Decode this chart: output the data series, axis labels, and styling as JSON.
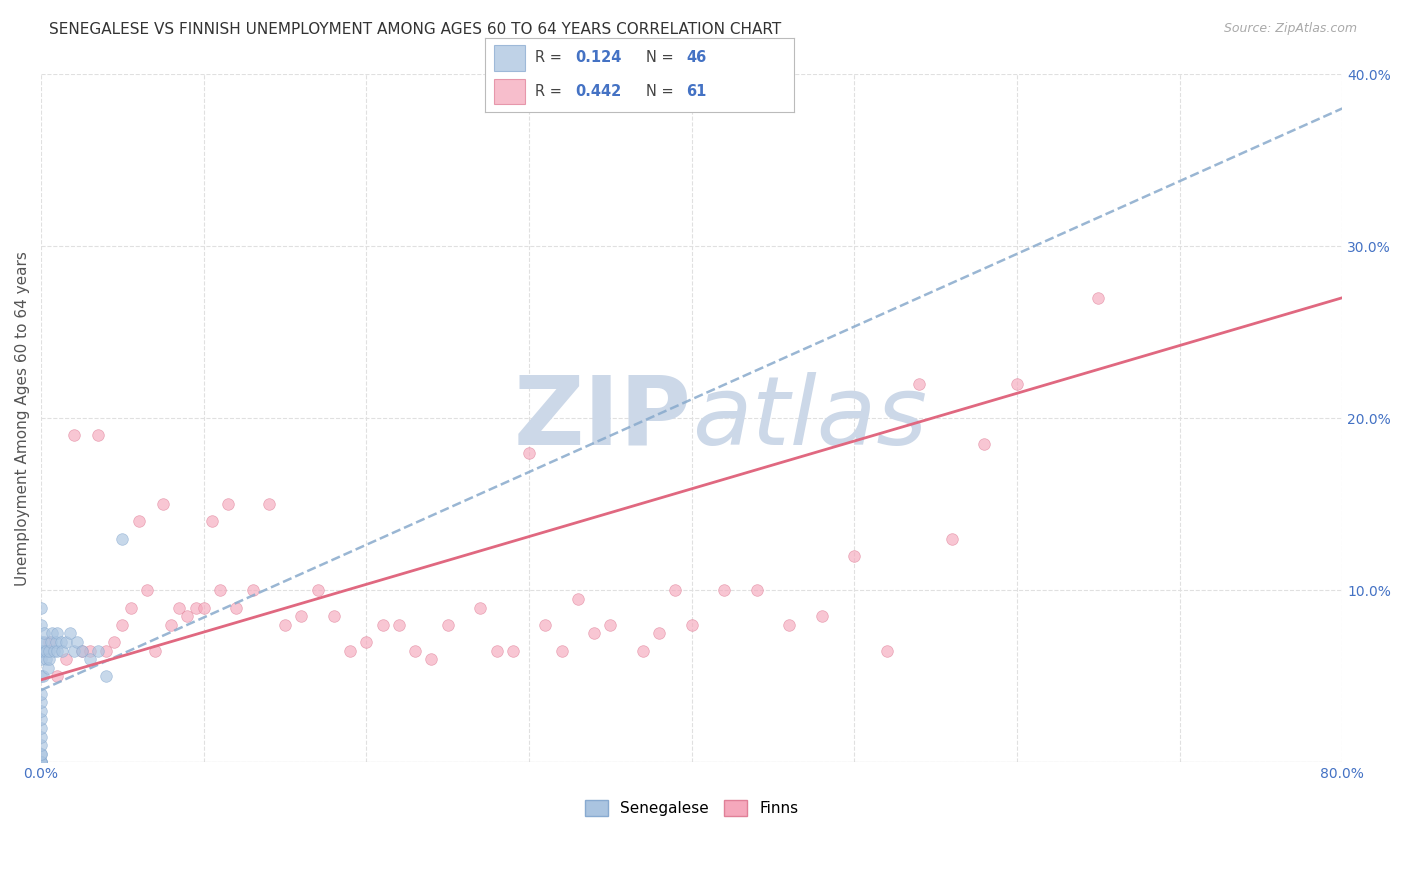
{
  "title": "SENEGALESE VS FINNISH UNEMPLOYMENT AMONG AGES 60 TO 64 YEARS CORRELATION CHART",
  "source": "Source: ZipAtlas.com",
  "ylabel": "Unemployment Among Ages 60 to 64 years",
  "xlim": [
    0.0,
    0.8
  ],
  "ylim": [
    0.0,
    0.4
  ],
  "xticks": [
    0.0,
    0.1,
    0.2,
    0.3,
    0.4,
    0.5,
    0.6,
    0.7,
    0.8
  ],
  "yticks": [
    0.0,
    0.1,
    0.2,
    0.3,
    0.4
  ],
  "xtick_labels": [
    "0.0%",
    "",
    "",
    "",
    "",
    "",
    "",
    "",
    "80.0%"
  ],
  "ytick_labels_right": [
    "",
    "10.0%",
    "20.0%",
    "30.0%",
    "40.0%"
  ],
  "background_color": "#ffffff",
  "grid_color": "#e0e0e0",
  "watermark_color": "#ccd8e8",
  "senegalese_color": "#aac4e0",
  "finns_color": "#f5a8bc",
  "senegalese_edge_color": "#88aad0",
  "finns_edge_color": "#e08098",
  "legend_R_senegalese": "0.124",
  "legend_N_senegalese": "46",
  "legend_R_finns": "0.442",
  "legend_N_finns": "61",
  "trendline_senegalese_color": "#88aacc",
  "trendline_finns_color": "#e06880",
  "senegalese_x": [
    0.0,
    0.0,
    0.0,
    0.0,
    0.0,
    0.0,
    0.0,
    0.0,
    0.0,
    0.0,
    0.0,
    0.0,
    0.0,
    0.0,
    0.0,
    0.0,
    0.0,
    0.0,
    0.0,
    0.0,
    0.001,
    0.001,
    0.002,
    0.002,
    0.003,
    0.003,
    0.004,
    0.005,
    0.005,
    0.006,
    0.007,
    0.008,
    0.009,
    0.01,
    0.01,
    0.012,
    0.013,
    0.015,
    0.018,
    0.02,
    0.022,
    0.025,
    0.03,
    0.035,
    0.04,
    0.05
  ],
  "senegalese_y": [
    0.0,
    0.0,
    0.0,
    0.0,
    0.0,
    0.005,
    0.005,
    0.01,
    0.015,
    0.02,
    0.025,
    0.03,
    0.035,
    0.04,
    0.05,
    0.06,
    0.065,
    0.07,
    0.08,
    0.09,
    0.05,
    0.065,
    0.07,
    0.075,
    0.06,
    0.065,
    0.055,
    0.06,
    0.065,
    0.07,
    0.075,
    0.065,
    0.07,
    0.065,
    0.075,
    0.07,
    0.065,
    0.07,
    0.075,
    0.065,
    0.07,
    0.065,
    0.06,
    0.065,
    0.05,
    0.13
  ],
  "finns_x": [
    0.005,
    0.01,
    0.015,
    0.02,
    0.025,
    0.03,
    0.035,
    0.04,
    0.045,
    0.05,
    0.055,
    0.06,
    0.065,
    0.07,
    0.075,
    0.08,
    0.085,
    0.09,
    0.095,
    0.1,
    0.105,
    0.11,
    0.115,
    0.12,
    0.13,
    0.14,
    0.15,
    0.16,
    0.17,
    0.18,
    0.19,
    0.2,
    0.21,
    0.22,
    0.23,
    0.24,
    0.25,
    0.27,
    0.28,
    0.29,
    0.3,
    0.31,
    0.32,
    0.33,
    0.34,
    0.35,
    0.37,
    0.38,
    0.39,
    0.4,
    0.42,
    0.44,
    0.46,
    0.48,
    0.5,
    0.52,
    0.54,
    0.56,
    0.58,
    0.6,
    0.65
  ],
  "finns_y": [
    0.07,
    0.05,
    0.06,
    0.19,
    0.065,
    0.065,
    0.19,
    0.065,
    0.07,
    0.08,
    0.09,
    0.14,
    0.1,
    0.065,
    0.15,
    0.08,
    0.09,
    0.085,
    0.09,
    0.09,
    0.14,
    0.1,
    0.15,
    0.09,
    0.1,
    0.15,
    0.08,
    0.085,
    0.1,
    0.085,
    0.065,
    0.07,
    0.08,
    0.08,
    0.065,
    0.06,
    0.08,
    0.09,
    0.065,
    0.065,
    0.18,
    0.08,
    0.065,
    0.095,
    0.075,
    0.08,
    0.065,
    0.075,
    0.1,
    0.08,
    0.1,
    0.1,
    0.08,
    0.085,
    0.12,
    0.065,
    0.22,
    0.13,
    0.185,
    0.22,
    0.27
  ],
  "marker_size": 70,
  "marker_alpha": 0.65,
  "title_fontsize": 11,
  "source_fontsize": 9,
  "axis_label_fontsize": 11,
  "tick_fontsize": 10,
  "legend_fontsize": 11,
  "trendline_sen_x0": 0.0,
  "trendline_sen_x1": 0.8,
  "trendline_sen_y0": 0.042,
  "trendline_sen_y1": 0.38,
  "trendline_fin_x0": 0.0,
  "trendline_fin_x1": 0.8,
  "trendline_fin_y0": 0.048,
  "trendline_fin_y1": 0.27
}
